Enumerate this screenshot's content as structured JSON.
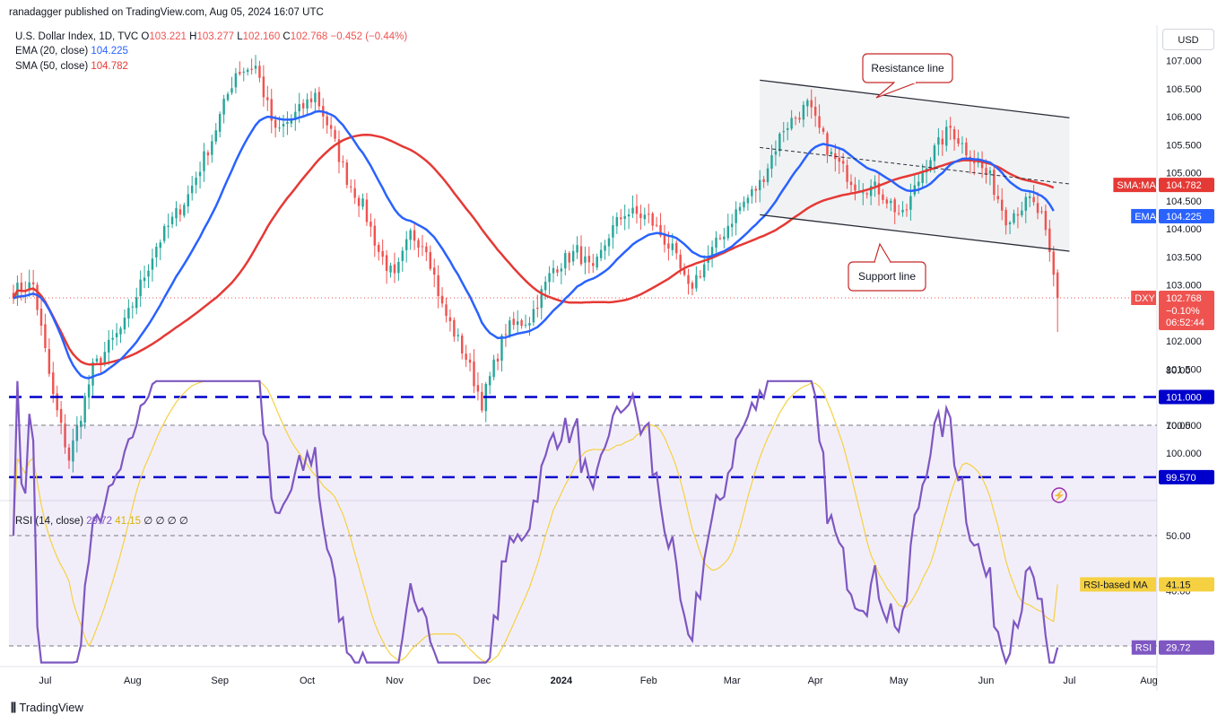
{
  "header": {
    "published": "ranadagger published on TradingView.com, Aug 05, 2024 16:07 UTC",
    "symbol": "U.S. Dollar Index, 1D, TVC",
    "o_label": "O",
    "o": "103.221",
    "h_label": "H",
    "h": "103.277",
    "l_label": "L",
    "l": "102.160",
    "c_label": "C",
    "c": "102.768",
    "change": "−0.452 (−0.44%)"
  },
  "legend": {
    "ema_label": "EMA (20, close)",
    "ema_value": "104.225",
    "sma_label": "SMA (50, close)",
    "sma_value": "104.782",
    "rsi_label": "RSI (14, close)",
    "rsi_value": "29.72",
    "rsi_ma_value": "41.15",
    "rsi_rest": "∅ ∅ ∅ ∅"
  },
  "currency_button": "USD",
  "brand": "TradingView",
  "colors": {
    "up": "#26a69a",
    "down": "#ef5350",
    "ema": "#2962ff",
    "sma": "#e53935",
    "rsi": "#7e57c2",
    "rsi_ma": "#f5d142",
    "hline": "#0000cc"
  },
  "chart_data": [
    {
      "type": "candlestick",
      "title": "U.S. Dollar Index, 1D, TVC",
      "ylim": [
        99.45,
        107.5
      ],
      "yticks": [
        "107.000",
        "106.500",
        "106.000",
        "105.500",
        "105.000",
        "104.500",
        "104.000",
        "103.500",
        "103.000",
        "102.500",
        "102.000",
        "101.500",
        "101.000",
        "100.500",
        "100.000"
      ],
      "x_months": [
        "Jul",
        "Aug",
        "Sep",
        "Oct",
        "Nov",
        "Dec",
        "2024",
        "Feb",
        "Mar",
        "Apr",
        "May",
        "Jun",
        "Jul",
        "Aug",
        "Sep"
      ],
      "anchors": [
        [
          0,
          102.9
        ],
        [
          5,
          103.0
        ],
        [
          10,
          101.0
        ],
        [
          14,
          99.9
        ],
        [
          20,
          101.5
        ],
        [
          28,
          102.3
        ],
        [
          36,
          103.7
        ],
        [
          44,
          104.6
        ],
        [
          50,
          105.6
        ],
        [
          56,
          106.8
        ],
        [
          61,
          106.9
        ],
        [
          66,
          105.7
        ],
        [
          72,
          106.1
        ],
        [
          76,
          106.4
        ],
        [
          80,
          105.7
        ],
        [
          84,
          104.9
        ],
        [
          88,
          104.4
        ],
        [
          92,
          103.6
        ],
        [
          96,
          103.1
        ],
        [
          100,
          103.9
        ],
        [
          104,
          103.7
        ],
        [
          108,
          102.6
        ],
        [
          114,
          101.7
        ],
        [
          118,
          100.9
        ],
        [
          124,
          102.2
        ],
        [
          130,
          102.4
        ],
        [
          136,
          103.3
        ],
        [
          142,
          103.6
        ],
        [
          146,
          103.2
        ],
        [
          150,
          103.9
        ],
        [
          154,
          104.3
        ],
        [
          160,
          104.2
        ],
        [
          166,
          103.6
        ],
        [
          170,
          102.9
        ],
        [
          176,
          103.6
        ],
        [
          182,
          104.3
        ],
        [
          188,
          104.8
        ],
        [
          194,
          105.8
        ],
        [
          200,
          106.2
        ],
        [
          206,
          105.3
        ],
        [
          212,
          104.8
        ],
        [
          218,
          104.7
        ],
        [
          224,
          104.2
        ],
        [
          230,
          105.2
        ],
        [
          236,
          105.8
        ],
        [
          240,
          105.4
        ],
        [
          246,
          104.9
        ],
        [
          250,
          104.2
        ],
        [
          256,
          104.5
        ],
        [
          259,
          104.2
        ],
        [
          261,
          103.5
        ],
        [
          263,
          102.77
        ]
      ],
      "ema": {
        "name": "EMA (20, close)",
        "last": 104.225
      },
      "sma": {
        "name": "SMA (50, close)",
        "last": 104.782
      },
      "price_tags": [
        {
          "label": "SMA:MA",
          "value": "104.782",
          "y": 104.782
        },
        {
          "label": "EMA",
          "value": "104.225",
          "y": 104.225
        },
        {
          "label": "DXY",
          "value": "102.768",
          "sub1": "−0.10%",
          "sub2": "06:52:44",
          "y": 102.768
        },
        {
          "label": "",
          "value": "101.000",
          "y": 101.0
        },
        {
          "label": "",
          "value": "99.570",
          "y": 99.57
        }
      ],
      "horizontal_lines": [
        101.0,
        99.57
      ],
      "annotations": {
        "resistance": "Resistance line",
        "support": "Support line"
      },
      "channel": {
        "upper": [
          [
            188,
            106.65
          ],
          [
            266,
            105.98
          ]
        ],
        "lower": [
          [
            188,
            104.25
          ],
          [
            266,
            103.6
          ]
        ],
        "mid": [
          [
            188,
            105.45
          ],
          [
            266,
            104.8
          ]
        ]
      }
    },
    {
      "type": "line",
      "title": "RSI (14, close)",
      "ylim": [
        26,
        81
      ],
      "yticks": [
        "80.00",
        "70.00",
        "60.00",
        "50.00",
        "40.00"
      ],
      "bands": [
        30,
        50,
        70
      ],
      "series": [
        {
          "name": "RSI",
          "last": 29.72
        },
        {
          "name": "RSI-based MA",
          "last": 41.15
        }
      ],
      "tags": [
        {
          "label": "RSI-based MA",
          "value": "41.15"
        },
        {
          "label": "RSI",
          "value": "29.72"
        }
      ]
    }
  ]
}
